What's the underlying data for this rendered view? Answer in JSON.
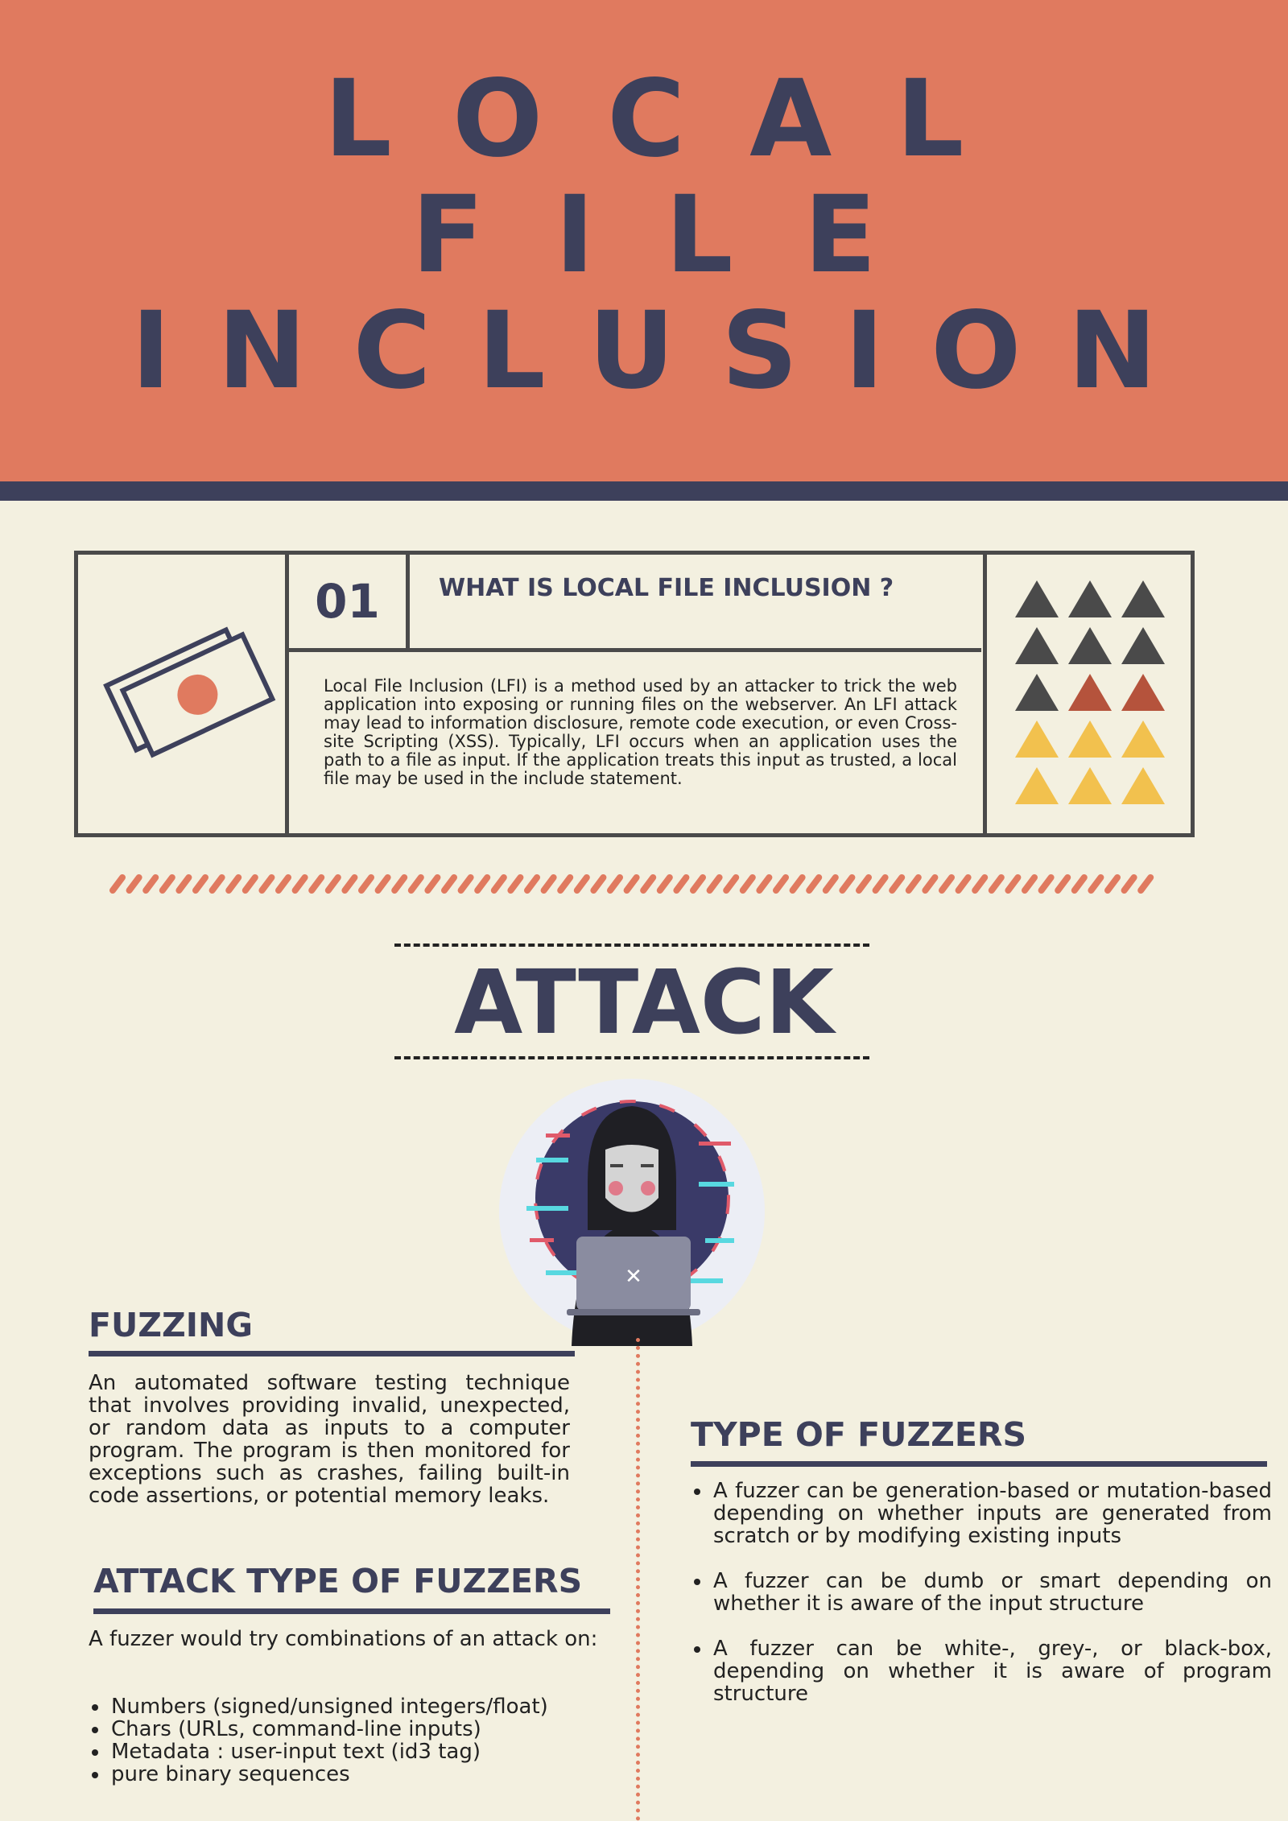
{
  "title": {
    "line1": "LOCAL",
    "line2": "FILE",
    "line3": "INCLUSION"
  },
  "section1": {
    "number": "01",
    "heading": "WHAT IS LOCAL FILE INCLUSION ?",
    "body": "Local File Inclusion (LFI) is a method used by an attacker to trick the web application into exposing or running files on the webserver. An LFI attack may lead to information disclosure, remote code execution, or even Cross-site Scripting (XSS). Typically, LFI occurs when an application uses the path to a file as input. If the application treats this input as trusted, a local file may be used in the include statement."
  },
  "attack": {
    "title": "ATTACK"
  },
  "fuzzing": {
    "heading": "FUZZING",
    "body": "An automated software testing technique that involves providing invalid, unexpected, or random data as inputs to a computer program. The program is then monitored for exceptions such as crashes, failing built-in code assertions, or potential memory leaks."
  },
  "attack_types": {
    "heading": "ATTACK TYPE OF FUZZERS",
    "intro": "A fuzzer would try combinations of an attack on:",
    "items": [
      "Numbers (signed/unsigned integers/float)",
      "Chars (URLs, command-line inputs)",
      "Metadata : user-input text (id3 tag)",
      "pure binary sequences"
    ]
  },
  "fuzzer_types": {
    "heading": "TYPE OF FUZZERS",
    "items": [
      "A fuzzer can be generation-based or mutation-based depending on whether inputs are generated from scratch or by modifying existing inputs",
      "A fuzzer can be dumb or smart depending on whether it is aware of the input structure",
      "A fuzzer can be white-, grey-, or black-box, depending on whether it is aware of program structure"
    ]
  },
  "colors": {
    "header": "#e07a5f",
    "navy": "#3d405b",
    "background": "#f3f0e0",
    "yellow": "#f2c14e",
    "rust": "#b5533c"
  },
  "icons": [
    "tickets-icon",
    "triangle-grid-icon",
    "hacker-icon"
  ]
}
